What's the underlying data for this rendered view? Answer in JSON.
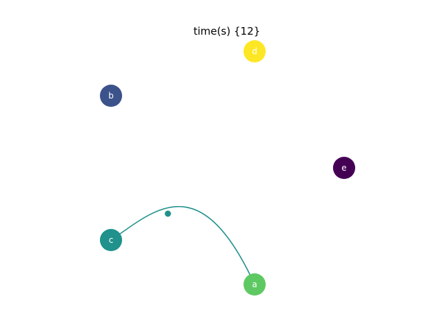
{
  "title": "time(s) {12}",
  "nodes": [
    {
      "id": "a",
      "label": "a",
      "color": "#5ec962"
    },
    {
      "id": "b",
      "label": "b",
      "color": "#3b528b"
    },
    {
      "id": "c",
      "label": "c",
      "color": "#21918c"
    },
    {
      "id": "d",
      "label": "d",
      "color": "#fde725"
    },
    {
      "id": "e",
      "label": "e",
      "color": "#440154"
    }
  ],
  "edges": [
    {
      "source": "c",
      "target": "a",
      "color": "#21918c",
      "marker": "dot"
    }
  ]
}
